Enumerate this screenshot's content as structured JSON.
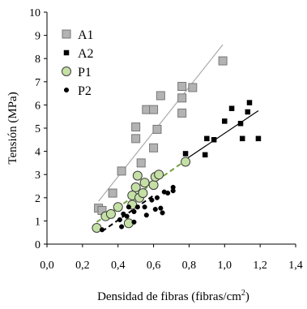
{
  "chart_data": {
    "type": "scatter",
    "title": "",
    "xlabel": "Densidad de fibras  (fibras/cm",
    "xlabel_sup": "2",
    "xlabel_end": ")",
    "ylabel": "Tensión (MPa)",
    "xlim": [
      0.0,
      1.4
    ],
    "ylim": [
      0,
      10
    ],
    "x_ticks": [
      "0,0",
      "0,2",
      "0,4",
      "0,6",
      "0,8",
      "1,0",
      "1,2",
      "1,4"
    ],
    "y_ticks": [
      "0",
      "1",
      "2",
      "3",
      "4",
      "5",
      "6",
      "7",
      "8",
      "9",
      "10"
    ],
    "grid": false,
    "legend_position": "top-left",
    "series": [
      {
        "name": "A1",
        "marker": "square",
        "fill": "#b3b3b3",
        "stroke": "#777777",
        "points": [
          [
            0.29,
            1.55
          ],
          [
            0.31,
            1.45
          ],
          [
            0.37,
            2.2
          ],
          [
            0.42,
            3.15
          ],
          [
            0.5,
            5.05
          ],
          [
            0.5,
            4.55
          ],
          [
            0.53,
            3.5
          ],
          [
            0.56,
            5.8
          ],
          [
            0.6,
            5.8
          ],
          [
            0.6,
            4.15
          ],
          [
            0.62,
            4.95
          ],
          [
            0.64,
            6.4
          ],
          [
            0.76,
            6.8
          ],
          [
            0.76,
            6.3
          ],
          [
            0.76,
            5.65
          ],
          [
            0.82,
            6.75
          ],
          [
            0.99,
            7.9
          ]
        ],
        "trend": {
          "x": [
            0.29,
            0.99
          ],
          "y": [
            1.85,
            8.6
          ],
          "color": "#aaaaaa",
          "dash": "solid"
        }
      },
      {
        "name": "A2",
        "marker": "small-square",
        "fill": "#000000",
        "stroke": "#000000",
        "points": [
          [
            0.78,
            3.9
          ],
          [
            0.89,
            3.85
          ],
          [
            0.9,
            4.55
          ],
          [
            0.94,
            4.5
          ],
          [
            1.0,
            5.3
          ],
          [
            1.04,
            5.85
          ],
          [
            1.09,
            5.2
          ],
          [
            1.1,
            4.55
          ],
          [
            1.13,
            5.7
          ],
          [
            1.14,
            6.1
          ],
          [
            1.19,
            4.55
          ]
        ],
        "trend": {
          "x": [
            0.78,
            1.19
          ],
          "y": [
            3.65,
            5.75
          ],
          "color": "#000000",
          "dash": "solid"
        }
      },
      {
        "name": "P1",
        "marker": "circle",
        "fill": "#c5e0a5",
        "stroke": "#3d3d3d",
        "points": [
          [
            0.28,
            0.7
          ],
          [
            0.33,
            1.2
          ],
          [
            0.36,
            1.3
          ],
          [
            0.4,
            1.6
          ],
          [
            0.46,
            0.9
          ],
          [
            0.48,
            1.7
          ],
          [
            0.48,
            2.1
          ],
          [
            0.5,
            2.45
          ],
          [
            0.51,
            2.95
          ],
          [
            0.52,
            2.0
          ],
          [
            0.54,
            2.2
          ],
          [
            0.55,
            2.65
          ],
          [
            0.6,
            2.55
          ],
          [
            0.61,
            2.9
          ],
          [
            0.63,
            3.0
          ],
          [
            0.78,
            3.55
          ]
        ],
        "trend": {
          "x": [
            0.28,
            0.78
          ],
          "y": [
            0.95,
            3.6
          ],
          "color": "#70a040",
          "dash": "dashed"
        }
      },
      {
        "name": "P2",
        "marker": "small-circle",
        "fill": "#000000",
        "stroke": "#000000",
        "points": [
          [
            0.31,
            0.62
          ],
          [
            0.41,
            1.05
          ],
          [
            0.42,
            0.75
          ],
          [
            0.43,
            1.3
          ],
          [
            0.45,
            1.2
          ],
          [
            0.46,
            1.6
          ],
          [
            0.49,
            1.4
          ],
          [
            0.49,
            0.95
          ],
          [
            0.51,
            1.6
          ],
          [
            0.55,
            1.6
          ],
          [
            0.56,
            1.25
          ],
          [
            0.59,
            1.9
          ],
          [
            0.61,
            1.5
          ],
          [
            0.62,
            2.0
          ],
          [
            0.64,
            1.55
          ],
          [
            0.65,
            1.35
          ],
          [
            0.66,
            2.25
          ],
          [
            0.68,
            2.2
          ],
          [
            0.71,
            2.3
          ],
          [
            0.71,
            2.45
          ]
        ],
        "trend": {
          "x": [
            0.31,
            0.6
          ],
          "y": [
            0.55,
            2.1
          ],
          "color": "#000000",
          "dash": "dashed"
        }
      }
    ]
  }
}
